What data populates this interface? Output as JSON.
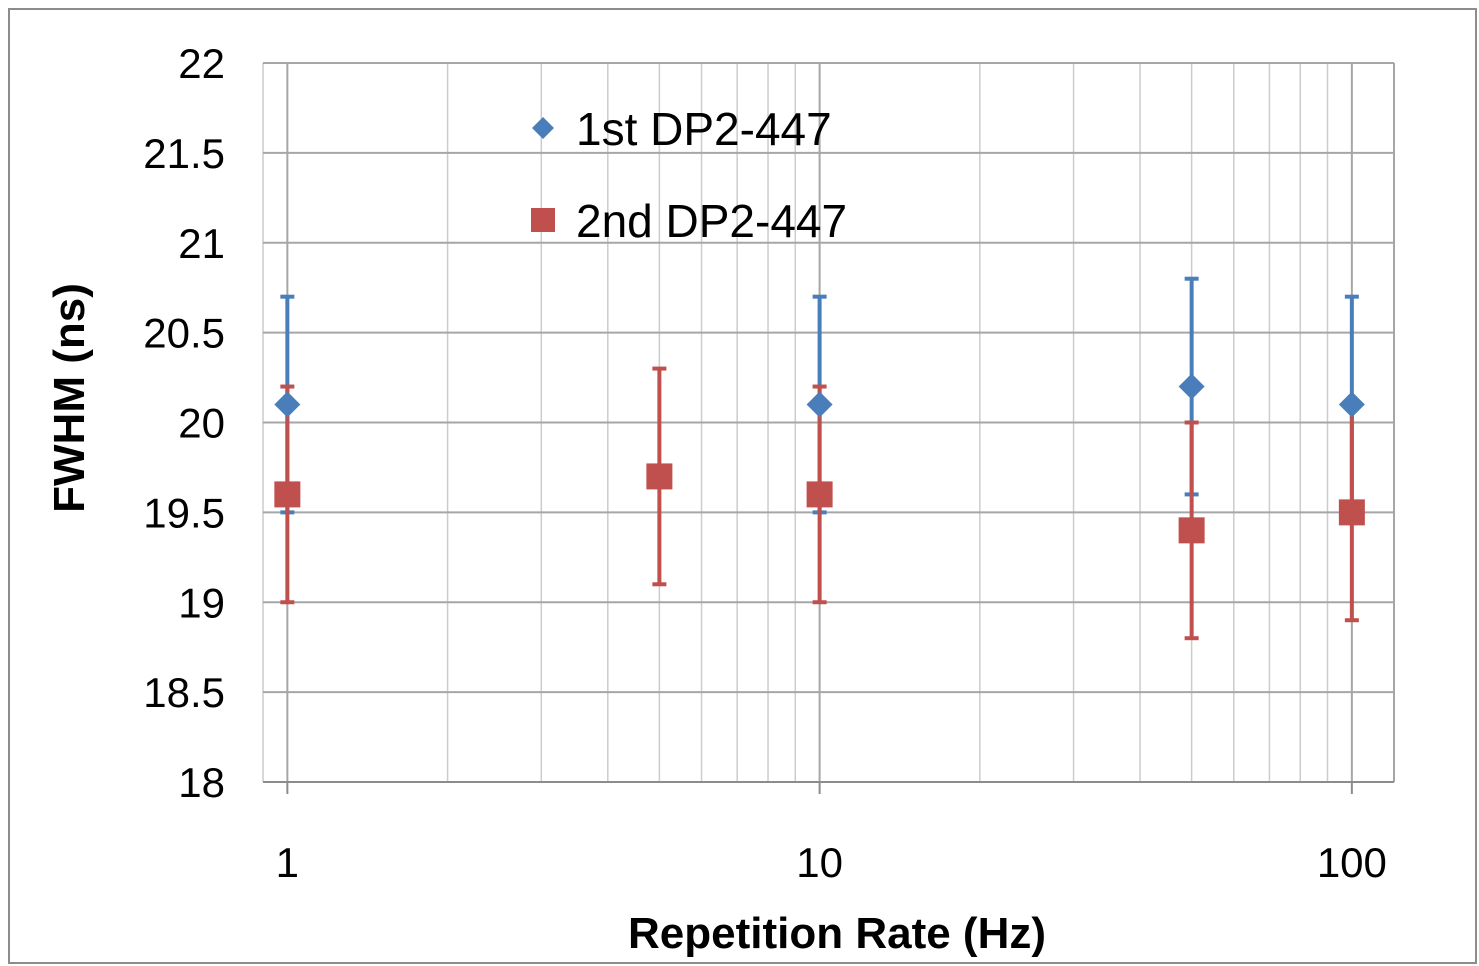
{
  "chart_data": {
    "type": "scatter",
    "title": "",
    "xlabel": "Repetition Rate (Hz)",
    "ylabel": "FWHM (ns)",
    "x_scale": "log",
    "xlim": [
      0.9,
      120
    ],
    "ylim": [
      18,
      22
    ],
    "x_ticks": [
      {
        "value": 1,
        "label": "1"
      },
      {
        "value": 10,
        "label": "10"
      },
      {
        "value": 100,
        "label": "100"
      }
    ],
    "y_ticks": [
      {
        "value": 22,
        "label": "22"
      },
      {
        "value": 21.5,
        "label": "21.5"
      },
      {
        "value": 21,
        "label": "21"
      },
      {
        "value": 20.5,
        "label": "20.5"
      },
      {
        "value": 20,
        "label": "20"
      },
      {
        "value": 19.5,
        "label": "19.5"
      },
      {
        "value": 19,
        "label": "19"
      },
      {
        "value": 18.5,
        "label": "18.5"
      },
      {
        "value": 18,
        "label": "18"
      }
    ],
    "grid": true,
    "legend_position": "top-center",
    "series": [
      {
        "name": "1st DP2-447",
        "marker": "diamond",
        "color": "#4a7ebb",
        "points": [
          {
            "x": 1,
            "y": 20.1,
            "err": 0.6
          },
          {
            "x": 10,
            "y": 20.1,
            "err": 0.6
          },
          {
            "x": 50,
            "y": 20.2,
            "err": 0.6
          },
          {
            "x": 100,
            "y": 20.1,
            "err": 0.6
          }
        ]
      },
      {
        "name": "2nd DP2-447",
        "marker": "square",
        "color": "#c0504d",
        "points": [
          {
            "x": 1,
            "y": 19.6,
            "err": 0.6
          },
          {
            "x": 5,
            "y": 19.7,
            "err": 0.6
          },
          {
            "x": 10,
            "y": 19.6,
            "err": 0.6
          },
          {
            "x": 50,
            "y": 19.4,
            "err": 0.6
          },
          {
            "x": 100,
            "y": 19.5,
            "err": 0.6
          }
        ]
      }
    ]
  }
}
